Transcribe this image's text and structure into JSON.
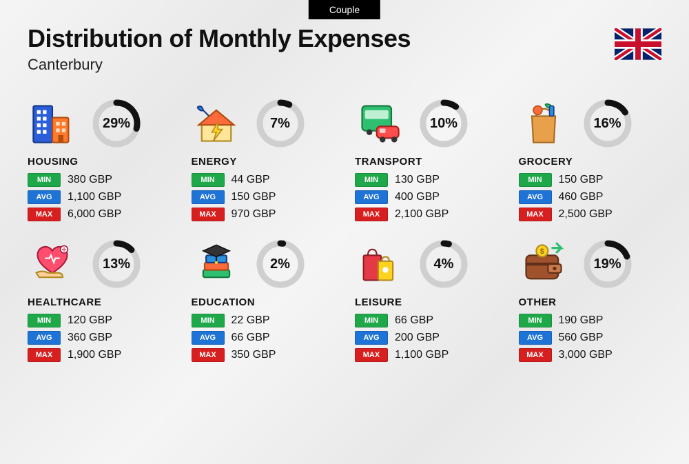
{
  "badge": "Couple",
  "title": "Distribution of Monthly Expenses",
  "subtitle": "Canterbury",
  "flag": "uk",
  "currency": "GBP",
  "colors": {
    "min_bg": "#1fa84a",
    "avg_bg": "#1e73d6",
    "max_bg": "#d81f1f",
    "donut_track": "#cfcfcf",
    "donut_arc": "#111111",
    "background": "#f0f0f0",
    "text": "#111111"
  },
  "labels": {
    "min": "MIN",
    "avg": "AVG",
    "max": "MAX"
  },
  "donut": {
    "radius": 30,
    "stroke_width": 9
  },
  "categories": [
    {
      "key": "housing",
      "name": "HOUSING",
      "percent": 29,
      "min": "380",
      "avg": "1,100",
      "max": "6,000",
      "icon": "buildings"
    },
    {
      "key": "energy",
      "name": "ENERGY",
      "percent": 7,
      "min": "44",
      "avg": "150",
      "max": "970",
      "icon": "house-bolt"
    },
    {
      "key": "transport",
      "name": "TRANSPORT",
      "percent": 10,
      "min": "130",
      "avg": "400",
      "max": "2,100",
      "icon": "bus-car"
    },
    {
      "key": "grocery",
      "name": "GROCERY",
      "percent": 16,
      "min": "150",
      "avg": "460",
      "max": "2,500",
      "icon": "grocery-bag"
    },
    {
      "key": "healthcare",
      "name": "HEALTHCARE",
      "percent": 13,
      "min": "120",
      "avg": "360",
      "max": "1,900",
      "icon": "heart-hand"
    },
    {
      "key": "education",
      "name": "EDUCATION",
      "percent": 2,
      "min": "22",
      "avg": "66",
      "max": "350",
      "icon": "grad-books"
    },
    {
      "key": "leisure",
      "name": "LEISURE",
      "percent": 4,
      "min": "66",
      "avg": "200",
      "max": "1,100",
      "icon": "shopping-bags"
    },
    {
      "key": "other",
      "name": "OTHER",
      "percent": 19,
      "min": "190",
      "avg": "560",
      "max": "3,000",
      "icon": "wallet"
    }
  ]
}
